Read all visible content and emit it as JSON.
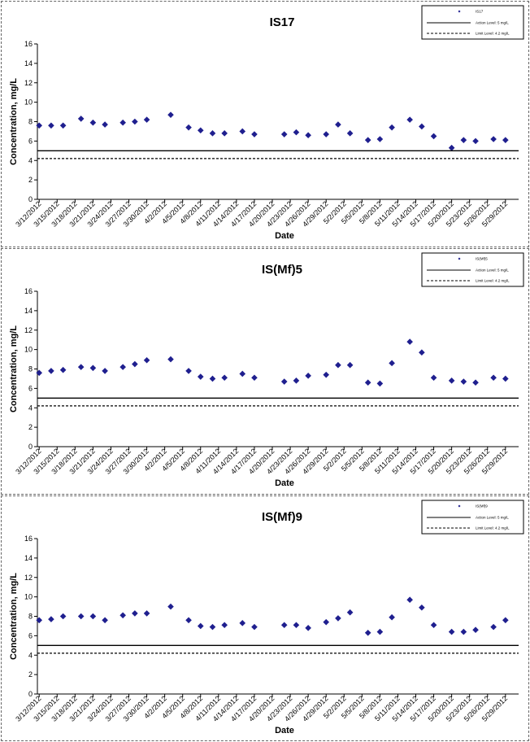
{
  "chart_data": [
    {
      "type": "scatter",
      "title": "IS17",
      "xlabel": "Date",
      "ylabel": "Concentration, mg/L",
      "ylim": [
        0,
        16
      ],
      "yticks": [
        "0",
        "2",
        "4",
        "6",
        "8",
        "10",
        "12",
        "14",
        "16"
      ],
      "xticks": [
        "3/12/2012",
        "3/15/2012",
        "3/18/2012",
        "3/21/2012",
        "3/24/2012",
        "3/27/2012",
        "3/30/2012",
        "4/2/2012",
        "4/5/2012",
        "4/8/2012",
        "4/11/2012",
        "4/14/2012",
        "4/17/2012",
        "4/20/2012",
        "4/23/2012",
        "4/26/2012",
        "4/29/2012",
        "5/2/2012",
        "5/5/2012",
        "5/8/2012",
        "5/11/2012",
        "5/14/2012",
        "5/17/2012",
        "5/20/2012",
        "5/23/2012",
        "5/26/2012",
        "5/29/2012"
      ],
      "legend": {
        "position": "top-right",
        "entries": [
          "IS17",
          "Action Level: 5 mg/L",
          "Limit Level: 4.2 mg/L"
        ]
      },
      "series": [
        {
          "name": "IS17",
          "style": "marker",
          "color": "#1f1f8f",
          "x": [
            "3/12/2012",
            "3/14/2012",
            "3/16/2012",
            "3/19/2012",
            "3/21/2012",
            "3/23/2012",
            "3/26/2012",
            "3/28/2012",
            "3/30/2012",
            "4/3/2012",
            "4/6/2012",
            "4/8/2012",
            "4/10/2012",
            "4/12/2012",
            "4/15/2012",
            "4/17/2012",
            "4/22/2012",
            "4/24/2012",
            "4/26/2012",
            "4/29/2012",
            "5/1/2012",
            "5/3/2012",
            "5/6/2012",
            "5/8/2012",
            "5/10/2012",
            "5/13/2012",
            "5/15/2012",
            "5/17/2012",
            "5/20/2012",
            "5/22/2012",
            "5/24/2012",
            "5/27/2012",
            "5/29/2012"
          ],
          "y": [
            7.6,
            7.6,
            7.6,
            8.3,
            7.9,
            7.7,
            7.9,
            8.0,
            8.2,
            8.7,
            7.4,
            7.1,
            6.8,
            6.8,
            7.0,
            6.7,
            6.7,
            6.9,
            6.6,
            6.7,
            7.7,
            6.8,
            6.1,
            6.2,
            7.4,
            8.2,
            7.5,
            6.5,
            5.3,
            6.1,
            6.0,
            6.2,
            6.1
          ]
        },
        {
          "name": "Action Level: 5 mg/L",
          "style": "solid",
          "value": 5
        },
        {
          "name": "Limit Level: 4.2 mg/L",
          "style": "dashed",
          "value": 4.2
        }
      ]
    },
    {
      "type": "scatter",
      "title": "IS(Mf)5",
      "xlabel": "Date",
      "ylabel": "Concentration, mg/L",
      "ylim": [
        0,
        16
      ],
      "yticks": [
        "0",
        "2",
        "4",
        "6",
        "8",
        "10",
        "12",
        "14",
        "16"
      ],
      "xticks": [
        "3/12/2012",
        "3/15/2012",
        "3/18/2012",
        "3/21/2012",
        "3/24/2012",
        "3/27/2012",
        "3/30/2012",
        "4/2/2012",
        "4/5/2012",
        "4/8/2012",
        "4/11/2012",
        "4/14/2012",
        "4/17/2012",
        "4/20/2012",
        "4/23/2012",
        "4/26/2012",
        "4/29/2012",
        "5/2/2012",
        "5/5/2012",
        "5/8/2012",
        "5/11/2012",
        "5/14/2012",
        "5/17/2012",
        "5/20/2012",
        "5/23/2012",
        "5/26/2012",
        "5/29/2012"
      ],
      "legend": {
        "position": "top-right",
        "entries": [
          "IS(Mf)5",
          "Action Level: 5 mg/L",
          "Limit Level: 4.2 mg/L"
        ]
      },
      "series": [
        {
          "name": "IS(Mf)5",
          "style": "marker",
          "color": "#1f1f8f",
          "x": [
            "3/12/2012",
            "3/14/2012",
            "3/16/2012",
            "3/19/2012",
            "3/21/2012",
            "3/23/2012",
            "3/26/2012",
            "3/28/2012",
            "3/30/2012",
            "4/3/2012",
            "4/6/2012",
            "4/8/2012",
            "4/10/2012",
            "4/12/2012",
            "4/15/2012",
            "4/17/2012",
            "4/22/2012",
            "4/24/2012",
            "4/26/2012",
            "4/29/2012",
            "5/1/2012",
            "5/3/2012",
            "5/6/2012",
            "5/8/2012",
            "5/10/2012",
            "5/13/2012",
            "5/15/2012",
            "5/17/2012",
            "5/20/2012",
            "5/22/2012",
            "5/24/2012",
            "5/27/2012",
            "5/29/2012"
          ],
          "y": [
            7.6,
            7.8,
            7.9,
            8.2,
            8.1,
            7.8,
            8.2,
            8.5,
            8.9,
            9.0,
            7.8,
            7.2,
            7.0,
            7.1,
            7.5,
            7.1,
            6.7,
            6.8,
            7.3,
            7.4,
            8.4,
            8.4,
            6.6,
            6.5,
            8.6,
            10.8,
            9.7,
            7.1,
            6.8,
            6.7,
            6.6,
            7.1,
            7.0
          ]
        },
        {
          "name": "Action Level: 5 mg/L",
          "style": "solid",
          "value": 5
        },
        {
          "name": "Limit Level: 4.2 mg/L",
          "style": "dashed",
          "value": 4.2
        }
      ]
    },
    {
      "type": "scatter",
      "title": "IS(Mf)9",
      "xlabel": "Date",
      "ylabel": "Concentration, mg/L",
      "ylim": [
        0,
        16
      ],
      "yticks": [
        "0",
        "2",
        "4",
        "6",
        "8",
        "10",
        "12",
        "14",
        "16"
      ],
      "xticks": [
        "3/12/2012",
        "3/15/2012",
        "3/18/2012",
        "3/21/2012",
        "3/24/2012",
        "3/27/2012",
        "3/30/2012",
        "4/2/2012",
        "4/5/2012",
        "4/8/2012",
        "4/11/2012",
        "4/14/2012",
        "4/17/2012",
        "4/20/2012",
        "4/23/2012",
        "4/26/2012",
        "4/29/2012",
        "5/2/2012",
        "5/5/2012",
        "5/8/2012",
        "5/11/2012",
        "5/14/2012",
        "5/17/2012",
        "5/20/2012",
        "5/23/2012",
        "5/26/2012",
        "5/29/2012"
      ],
      "legend": {
        "position": "top-right",
        "entries": [
          "IS(Mf)9",
          "Action Level: 5 mg/L",
          "Limit Level: 4.2 mg/L"
        ]
      },
      "series": [
        {
          "name": "IS(Mf)9",
          "style": "marker",
          "color": "#1f1f8f",
          "x": [
            "3/12/2012",
            "3/14/2012",
            "3/16/2012",
            "3/19/2012",
            "3/21/2012",
            "3/23/2012",
            "3/26/2012",
            "3/28/2012",
            "3/30/2012",
            "4/3/2012",
            "4/6/2012",
            "4/8/2012",
            "4/10/2012",
            "4/12/2012",
            "4/15/2012",
            "4/17/2012",
            "4/22/2012",
            "4/24/2012",
            "4/26/2012",
            "4/29/2012",
            "5/1/2012",
            "5/3/2012",
            "5/6/2012",
            "5/8/2012",
            "5/10/2012",
            "5/13/2012",
            "5/15/2012",
            "5/17/2012",
            "5/20/2012",
            "5/22/2012",
            "5/24/2012",
            "5/27/2012",
            "5/29/2012"
          ],
          "y": [
            7.6,
            7.7,
            8.0,
            8.0,
            8.0,
            7.6,
            8.1,
            8.3,
            8.3,
            9.0,
            7.6,
            7.0,
            6.9,
            7.1,
            7.3,
            6.9,
            7.1,
            7.1,
            6.8,
            7.4,
            7.8,
            8.4,
            6.3,
            6.4,
            7.9,
            9.7,
            8.9,
            7.1,
            6.4,
            6.4,
            6.6,
            6.9,
            7.6
          ]
        },
        {
          "name": "Action Level: 5 mg/L",
          "style": "solid",
          "value": 5
        },
        {
          "name": "Limit Level: 4.2 mg/L",
          "style": "dashed",
          "value": 4.2
        }
      ]
    }
  ]
}
